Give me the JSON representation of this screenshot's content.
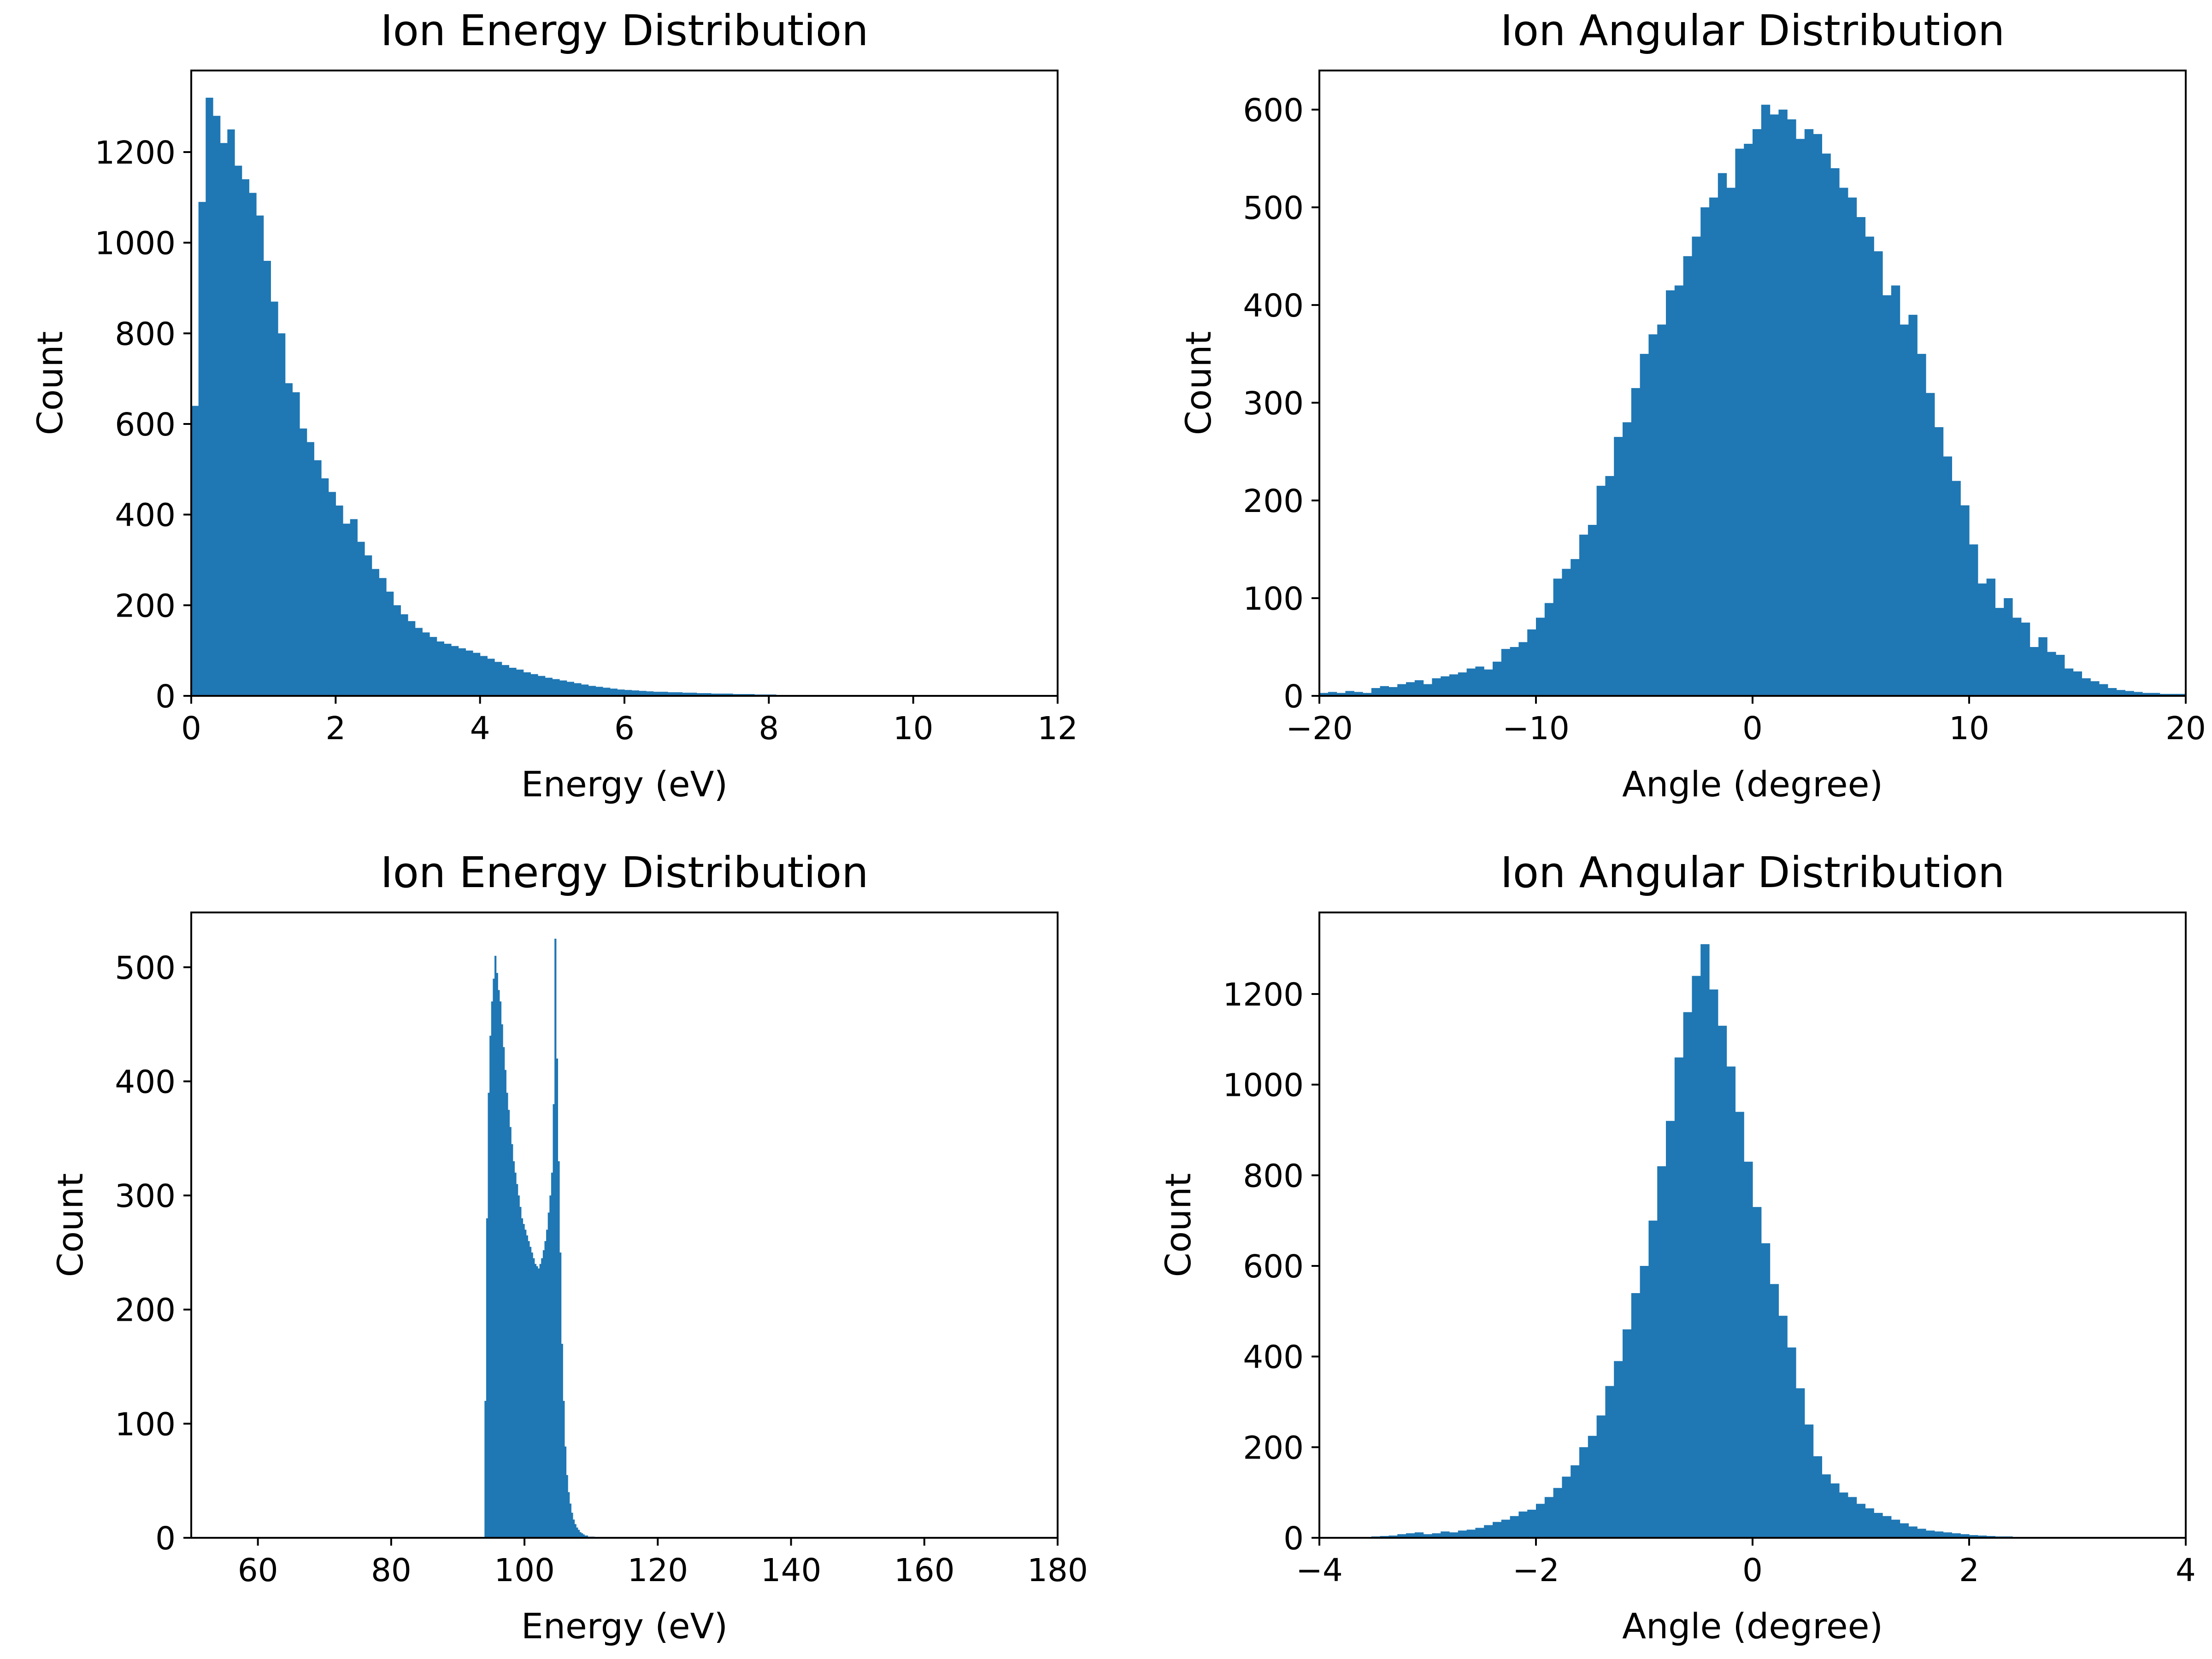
{
  "chart_data": [
    {
      "type": "bar",
      "title": "Ion Energy Distribution",
      "xlabel": "Energy (eV)",
      "ylabel": "Count",
      "xlim": [
        0,
        12
      ],
      "ylim": [
        0,
        1380
      ],
      "xticks": [
        "0",
        "2",
        "4",
        "6",
        "8",
        "10",
        "12"
      ],
      "yticks": [
        "0",
        "200",
        "400",
        "600",
        "800",
        "1000",
        "1200"
      ],
      "grid": false,
      "color": "#1f77b4",
      "bin_start": 0.0,
      "bin_width": 0.1,
      "values": [
        640,
        1090,
        1320,
        1280,
        1220,
        1250,
        1170,
        1140,
        1110,
        1060,
        960,
        870,
        800,
        690,
        670,
        590,
        560,
        520,
        480,
        450,
        420,
        380,
        390,
        340,
        310,
        280,
        260,
        230,
        200,
        180,
        165,
        150,
        140,
        130,
        120,
        115,
        110,
        105,
        100,
        95,
        88,
        82,
        75,
        68,
        62,
        58,
        52,
        48,
        44,
        40,
        37,
        34,
        31,
        28,
        25,
        22,
        20,
        18,
        16,
        14,
        13,
        12,
        11,
        10,
        9,
        9,
        8,
        8,
        7,
        7,
        6,
        6,
        5,
        5,
        5,
        4,
        4,
        4,
        3,
        3,
        3,
        2,
        2,
        2,
        2,
        1,
        1,
        1,
        1,
        1,
        1,
        1,
        0,
        0,
        0,
        0,
        0,
        0,
        0,
        0,
        0,
        0,
        0,
        0
      ]
    },
    {
      "type": "bar",
      "title": "Ion Angular Distribution",
      "xlabel": "Angle (degree)",
      "ylabel": "Count",
      "xlim": [
        -20,
        20
      ],
      "ylim": [
        0,
        640
      ],
      "xticks": [
        "−20",
        "−10",
        "0",
        "10",
        "20"
      ],
      "yticks": [
        "0",
        "100",
        "200",
        "300",
        "400",
        "500",
        "600"
      ],
      "grid": false,
      "color": "#1f77b4",
      "bin_start": -20.0,
      "bin_width": 0.4,
      "values": [
        3,
        4,
        3,
        5,
        4,
        3,
        8,
        10,
        9,
        12,
        14,
        16,
        12,
        18,
        20,
        22,
        24,
        28,
        30,
        27,
        35,
        48,
        50,
        55,
        68,
        80,
        95,
        120,
        130,
        140,
        165,
        175,
        215,
        225,
        265,
        280,
        315,
        350,
        370,
        380,
        415,
        420,
        450,
        470,
        500,
        510,
        535,
        520,
        560,
        565,
        580,
        605,
        595,
        600,
        590,
        570,
        580,
        575,
        555,
        540,
        520,
        510,
        490,
        470,
        455,
        410,
        420,
        380,
        390,
        350,
        310,
        275,
        245,
        220,
        195,
        155,
        115,
        120,
        90,
        100,
        80,
        75,
        50,
        60,
        45,
        42,
        28,
        25,
        18,
        15,
        12,
        8,
        6,
        5,
        4,
        3,
        3,
        2,
        2,
        2
      ]
    },
    {
      "type": "bar",
      "title": "Ion Energy Distribution",
      "xlabel": "Energy (eV)",
      "ylabel": "Count",
      "xlim": [
        50,
        180
      ],
      "ylim": [
        0,
        548
      ],
      "xticks": [
        "60",
        "80",
        "100",
        "120",
        "140",
        "160",
        "180"
      ],
      "yticks": [
        "0",
        "100",
        "200",
        "300",
        "400",
        "500"
      ],
      "grid": false,
      "color": "#1f77b4",
      "bin_start": 94.0,
      "bin_width": 0.25,
      "values": [
        120,
        280,
        390,
        440,
        470,
        490,
        510,
        495,
        480,
        470,
        450,
        430,
        410,
        390,
        375,
        360,
        345,
        330,
        320,
        310,
        300,
        290,
        280,
        275,
        270,
        265,
        260,
        255,
        250,
        245,
        240,
        238,
        236,
        240,
        245,
        252,
        260,
        270,
        285,
        300,
        320,
        380,
        525,
        420,
        330,
        250,
        170,
        120,
        80,
        55,
        40,
        30,
        22,
        16,
        12,
        9,
        7,
        5,
        4,
        3,
        2,
        2,
        1,
        1,
        1,
        1,
        0,
        0,
        0,
        0,
        0,
        0
      ]
    },
    {
      "type": "bar",
      "title": "Ion Angular Distribution",
      "xlabel": "Angle (degree)",
      "ylabel": "Count",
      "xlim": [
        -4,
        4
      ],
      "ylim": [
        0,
        1380
      ],
      "xticks": [
        "−4",
        "−2",
        "0",
        "2",
        "4"
      ],
      "yticks": [
        "0",
        "200",
        "400",
        "600",
        "800",
        "1000",
        "1200"
      ],
      "grid": false,
      "color": "#1f77b4",
      "bin_start": -4.0,
      "bin_width": 0.08,
      "values": [
        0,
        0,
        1,
        1,
        2,
        2,
        3,
        4,
        5,
        8,
        10,
        12,
        8,
        10,
        14,
        12,
        16,
        18,
        22,
        28,
        35,
        40,
        48,
        58,
        62,
        75,
        90,
        110,
        135,
        160,
        200,
        225,
        270,
        335,
        390,
        460,
        540,
        600,
        700,
        820,
        920,
        1060,
        1160,
        1240,
        1310,
        1210,
        1130,
        1040,
        940,
        830,
        730,
        650,
        560,
        490,
        420,
        330,
        250,
        180,
        140,
        120,
        100,
        90,
        75,
        65,
        55,
        48,
        40,
        32,
        25,
        20,
        16,
        14,
        12,
        10,
        8,
        6,
        5,
        4,
        3,
        3,
        2,
        2,
        1,
        1,
        1,
        1,
        0,
        0,
        0,
        0,
        0,
        0,
        0,
        0,
        0,
        0,
        0,
        0,
        0,
        0
      ]
    }
  ]
}
